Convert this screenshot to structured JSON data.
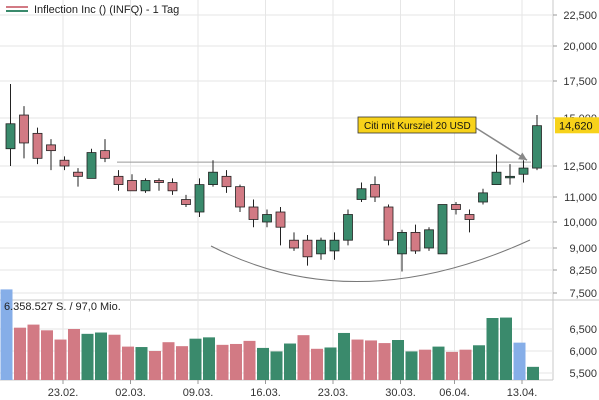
{
  "chart_data": [
    {
      "type": "candlestick",
      "legend": "Inflection Inc () (INFQ) - 1 Tag",
      "y_ticks": [
        "22,500",
        "20,000",
        "17,500",
        "15,000",
        "12,500",
        "11,000",
        "10,000",
        "9,000",
        "8,250",
        "7,500"
      ],
      "y_tick_values": [
        22.5,
        20.0,
        17.5,
        15.0,
        12.5,
        11.0,
        10.0,
        9.0,
        8.25,
        7.5
      ],
      "last_price_label": "14,620",
      "last_price": 14.62,
      "support_level": 12.7,
      "annotation": "Citi mit Kursziel 20 USD",
      "x_labels": [
        "23.02.",
        "02.03.",
        "09.03.",
        "16.03.",
        "23.03.",
        "30.03.",
        "06.04.",
        "13.04."
      ],
      "x_label_index": [
        4,
        9,
        14,
        19,
        24,
        29,
        33,
        38
      ],
      "candles": [
        {
          "o": 13.4,
          "h": 17.3,
          "l": 12.5,
          "c": 14.7
        },
        {
          "o": 15.2,
          "h": 15.8,
          "l": 12.9,
          "c": 13.7
        },
        {
          "o": 14.2,
          "h": 14.5,
          "l": 12.6,
          "c": 12.9
        },
        {
          "o": 13.6,
          "h": 13.9,
          "l": 12.3,
          "c": 13.3
        },
        {
          "o": 12.8,
          "h": 13.0,
          "l": 12.3,
          "c": 12.5
        },
        {
          "o": 12.2,
          "h": 12.4,
          "l": 11.5,
          "c": 12.0
        },
        {
          "o": 11.9,
          "h": 13.4,
          "l": 11.9,
          "c": 13.2
        },
        {
          "o": 13.3,
          "h": 13.9,
          "l": 12.7,
          "c": 12.9
        },
        {
          "o": 12.0,
          "h": 12.3,
          "l": 11.3,
          "c": 11.6
        },
        {
          "o": 11.8,
          "h": 12.1,
          "l": 11.3,
          "c": 11.3
        },
        {
          "o": 11.3,
          "h": 11.9,
          "l": 11.2,
          "c": 11.8
        },
        {
          "o": 11.8,
          "h": 11.9,
          "l": 11.3,
          "c": 11.7
        },
        {
          "o": 11.7,
          "h": 11.9,
          "l": 11.1,
          "c": 11.3
        },
        {
          "o": 10.9,
          "h": 11.1,
          "l": 10.6,
          "c": 10.7
        },
        {
          "o": 10.4,
          "h": 11.9,
          "l": 10.2,
          "c": 11.6
        },
        {
          "o": 11.6,
          "h": 12.8,
          "l": 11.5,
          "c": 12.2
        },
        {
          "o": 12.0,
          "h": 12.3,
          "l": 11.2,
          "c": 11.5
        },
        {
          "o": 11.5,
          "h": 11.6,
          "l": 10.4,
          "c": 10.6
        },
        {
          "o": 10.6,
          "h": 10.9,
          "l": 9.8,
          "c": 10.1
        },
        {
          "o": 10.0,
          "h": 10.5,
          "l": 9.8,
          "c": 10.3
        },
        {
          "o": 10.4,
          "h": 10.6,
          "l": 9.1,
          "c": 9.8
        },
        {
          "o": 9.3,
          "h": 9.6,
          "l": 8.9,
          "c": 9.0
        },
        {
          "o": 9.3,
          "h": 9.5,
          "l": 8.4,
          "c": 8.7
        },
        {
          "o": 8.8,
          "h": 9.4,
          "l": 8.6,
          "c": 9.3
        },
        {
          "o": 8.9,
          "h": 9.6,
          "l": 8.6,
          "c": 9.3
        },
        {
          "o": 9.3,
          "h": 10.5,
          "l": 9.1,
          "c": 10.3
        },
        {
          "o": 10.9,
          "h": 11.7,
          "l": 10.8,
          "c": 11.4
        },
        {
          "o": 11.6,
          "h": 12.0,
          "l": 10.8,
          "c": 11.0
        },
        {
          "o": 10.6,
          "h": 10.7,
          "l": 9.1,
          "c": 9.3
        },
        {
          "o": 8.8,
          "h": 9.7,
          "l": 8.2,
          "c": 9.6
        },
        {
          "o": 9.6,
          "h": 9.9,
          "l": 8.8,
          "c": 8.9
        },
        {
          "o": 9.0,
          "h": 9.8,
          "l": 8.9,
          "c": 9.7
        },
        {
          "o": 8.8,
          "h": 10.7,
          "l": 8.8,
          "c": 10.7
        },
        {
          "o": 10.7,
          "h": 10.8,
          "l": 10.3,
          "c": 10.5
        },
        {
          "o": 10.3,
          "h": 10.5,
          "l": 9.6,
          "c": 10.1
        },
        {
          "o": 10.8,
          "h": 11.4,
          "l": 10.7,
          "c": 11.2
        },
        {
          "o": 11.6,
          "h": 13.1,
          "l": 11.6,
          "c": 12.2
        },
        {
          "o": 12.0,
          "h": 12.6,
          "l": 11.6,
          "c": 12.0
        },
        {
          "o": 12.1,
          "h": 12.8,
          "l": 11.7,
          "c": 12.4
        },
        {
          "o": 12.4,
          "h": 15.2,
          "l": 12.3,
          "c": 14.6
        }
      ]
    },
    {
      "type": "bar",
      "legend": "6.358.527 S. / 97,0 Mio.",
      "y_ticks": [
        "6,500",
        "6,000",
        "5,500"
      ],
      "y_tick_values": [
        6.5,
        6.0,
        5.5
      ],
      "volumes": [
        {
          "v": 7.4,
          "dir": "up"
        },
        {
          "v": 6.53,
          "dir": "down"
        },
        {
          "v": 6.6,
          "dir": "down"
        },
        {
          "v": 6.47,
          "dir": "down"
        },
        {
          "v": 6.26,
          "dir": "down"
        },
        {
          "v": 6.5,
          "dir": "down"
        },
        {
          "v": 6.39,
          "dir": "up"
        },
        {
          "v": 6.42,
          "dir": "up"
        },
        {
          "v": 6.37,
          "dir": "down"
        },
        {
          "v": 6.1,
          "dir": "down"
        },
        {
          "v": 6.09,
          "dir": "up"
        },
        {
          "v": 6.0,
          "dir": "down"
        },
        {
          "v": 6.2,
          "dir": "down"
        },
        {
          "v": 6.11,
          "dir": "down"
        },
        {
          "v": 6.28,
          "dir": "up"
        },
        {
          "v": 6.31,
          "dir": "up"
        },
        {
          "v": 6.14,
          "dir": "down"
        },
        {
          "v": 6.16,
          "dir": "down"
        },
        {
          "v": 6.23,
          "dir": "down"
        },
        {
          "v": 6.07,
          "dir": "up"
        },
        {
          "v": 5.99,
          "dir": "up"
        },
        {
          "v": 6.17,
          "dir": "up"
        },
        {
          "v": 6.36,
          "dir": "down"
        },
        {
          "v": 6.05,
          "dir": "down"
        },
        {
          "v": 6.08,
          "dir": "up"
        },
        {
          "v": 6.41,
          "dir": "up"
        },
        {
          "v": 6.26,
          "dir": "down"
        },
        {
          "v": 6.24,
          "dir": "down"
        },
        {
          "v": 6.18,
          "dir": "down"
        },
        {
          "v": 6.25,
          "dir": "up"
        },
        {
          "v": 5.99,
          "dir": "up"
        },
        {
          "v": 6.03,
          "dir": "down"
        },
        {
          "v": 6.1,
          "dir": "up"
        },
        {
          "v": 5.98,
          "dir": "down"
        },
        {
          "v": 6.03,
          "dir": "down"
        },
        {
          "v": 6.13,
          "dir": "up"
        },
        {
          "v": 6.75,
          "dir": "up"
        },
        {
          "v": 6.76,
          "dir": "up"
        },
        {
          "v": 6.19,
          "dir": "up"
        },
        {
          "v": 5.64,
          "dir": "up"
        }
      ]
    }
  ],
  "colors": {
    "up": "#3a8a6c",
    "down": "#d27a84",
    "highlight": "#86aee8",
    "annotation_bg": "#f7d21a",
    "price_tag_bg": "#f7d21a",
    "grid": "#e6e6e6",
    "support_line": "#999999",
    "arc": "#777777"
  }
}
